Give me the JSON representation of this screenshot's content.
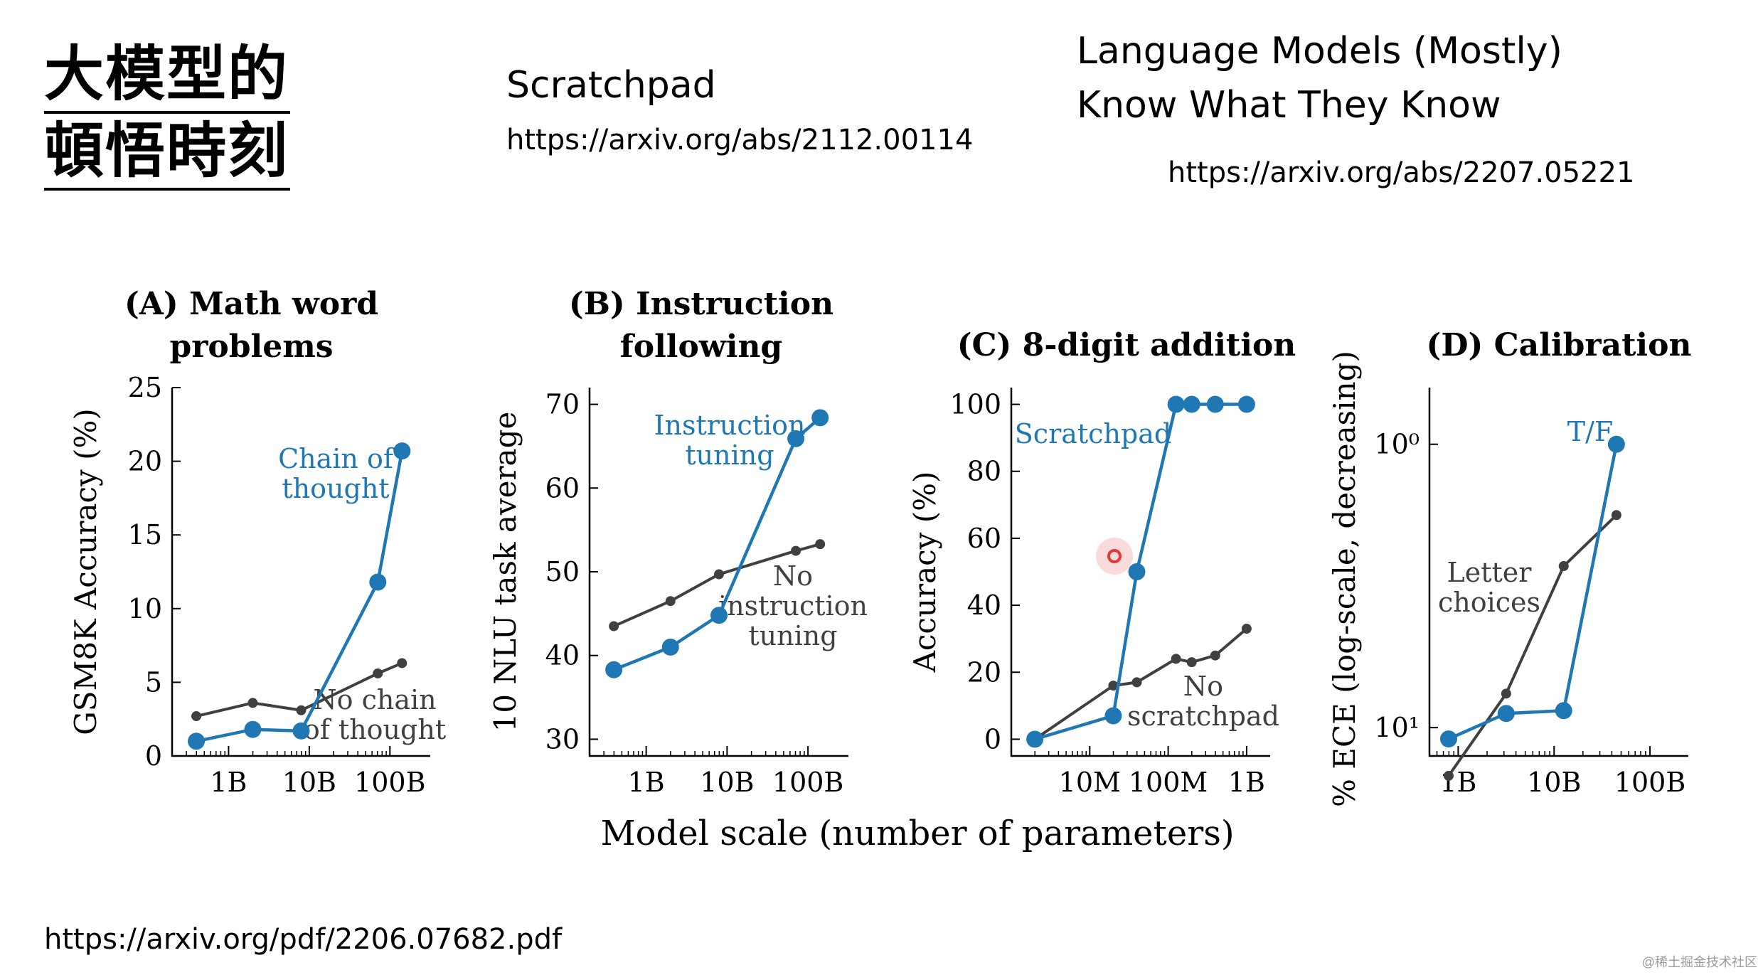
{
  "slide": {
    "title_line1": "大模型的",
    "title_line2": "頓悟時刻",
    "ref1_title": "Scratchpad",
    "ref1_url": "https://arxiv.org/abs/2112.00114",
    "ref2_title_line1": "Language Models (Mostly)",
    "ref2_title_line2": "Know What They Know",
    "ref2_url": "https://arxiv.org/abs/2207.05221",
    "source_url": "https://arxiv.org/pdf/2206.07682.pdf",
    "watermark": "@稀土掘金技术社区"
  },
  "figure": {
    "xlabel": "Model scale (number of parameters)"
  },
  "colors": {
    "blue": "#1f77b4",
    "gray": "#404040",
    "highlight": "#e53935"
  },
  "chart_data": [
    {
      "type": "line",
      "title": "(A) Math word problems",
      "title_lines": [
        "(A) Math word",
        "problems"
      ],
      "ylabel": "GSM8K Accuracy (%)",
      "yscale": "linear",
      "ylim": [
        0,
        25
      ],
      "yticks": [
        0,
        5,
        10,
        15,
        20,
        25
      ],
      "xlim_log10": [
        8.3,
        11.5
      ],
      "xticks": [
        {
          "v": 9,
          "label": "1B"
        },
        {
          "v": 10,
          "label": "10B"
        },
        {
          "v": 11,
          "label": "100B"
        }
      ],
      "series": [
        {
          "name": "Chain of thought",
          "color": "blue",
          "label_lines": [
            "Chain of",
            "thought"
          ],
          "x": [
            8.6,
            9.3,
            9.9,
            10.85,
            11.15
          ],
          "y": [
            1.0,
            1.8,
            1.7,
            11.8,
            20.7
          ]
        },
        {
          "name": "No chain of thought",
          "color": "gray",
          "label_lines": [
            "No chain",
            "of thought"
          ],
          "x": [
            8.6,
            9.3,
            9.9,
            10.85,
            11.15
          ],
          "y": [
            2.7,
            3.6,
            3.1,
            5.6,
            6.3
          ]
        }
      ]
    },
    {
      "type": "line",
      "title": "(B) Instruction following",
      "title_lines": [
        "(B) Instruction",
        "following"
      ],
      "ylabel": "10 NLU task average",
      "yscale": "linear",
      "ylim": [
        28,
        72
      ],
      "yticks": [
        30,
        40,
        50,
        60,
        70
      ],
      "xlim_log10": [
        8.3,
        11.5
      ],
      "xticks": [
        {
          "v": 9,
          "label": "1B"
        },
        {
          "v": 10,
          "label": "10B"
        },
        {
          "v": 11,
          "label": "100B"
        }
      ],
      "series": [
        {
          "name": "Instruction tuning",
          "color": "blue",
          "label_lines": [
            "Instruction",
            "tuning"
          ],
          "x": [
            8.6,
            9.3,
            9.9,
            10.85,
            11.15
          ],
          "y": [
            38.3,
            41.0,
            44.8,
            65.9,
            68.4
          ]
        },
        {
          "name": "No instruction tuning",
          "color": "gray",
          "label_lines": [
            "No",
            "instruction",
            "tuning"
          ],
          "x": [
            8.6,
            9.3,
            9.9,
            10.85,
            11.15
          ],
          "y": [
            43.5,
            46.5,
            49.7,
            52.5,
            53.3
          ]
        }
      ]
    },
    {
      "type": "line",
      "title": "(C) 8-digit addition",
      "title_lines": [
        "(C) 8-digit addition"
      ],
      "ylabel": "Accuracy (%)",
      "yscale": "linear",
      "ylim": [
        -5,
        105
      ],
      "yticks": [
        0,
        20,
        40,
        60,
        80,
        100
      ],
      "xlim_log10": [
        6.0,
        9.3
      ],
      "xticks": [
        {
          "v": 7,
          "label": "10M"
        },
        {
          "v": 8,
          "label": "100M"
        },
        {
          "v": 9,
          "label": "1B"
        }
      ],
      "series": [
        {
          "name": "Scratchpad",
          "color": "blue",
          "label_lines": [
            "Scratchpad"
          ],
          "x": [
            6.3,
            7.3,
            7.6,
            8.1,
            8.3,
            8.6,
            9.0
          ],
          "y": [
            0,
            7,
            50,
            100,
            100,
            100,
            100
          ]
        },
        {
          "name": "No scratchpad",
          "color": "gray",
          "label_lines": [
            "No",
            "scratchpad"
          ],
          "x": [
            6.3,
            7.3,
            7.6,
            8.1,
            8.3,
            8.6,
            9.0
          ],
          "y": [
            0,
            16,
            17,
            24,
            23,
            25,
            33
          ]
        }
      ]
    },
    {
      "type": "line",
      "title": "(D) Calibration",
      "title_lines": [
        "(D) Calibration"
      ],
      "ylabel": "% ECE (log-scale, decreasing)",
      "yscale": "log",
      "ylim_log10": [
        0.1,
        1.4
      ],
      "yticks": [
        {
          "v": 0.3,
          "label": "10⁰"
        },
        {
          "v": 1.3,
          "label": "10¹"
        }
      ],
      "xlim_log10": [
        8.7,
        11.4
      ],
      "xticks": [
        {
          "v": 9,
          "label": "1B"
        },
        {
          "v": 10,
          "label": "10B"
        },
        {
          "v": 11,
          "label": "100B"
        }
      ],
      "series": [
        {
          "name": "T/F",
          "color": "blue",
          "label_lines": [
            "T/F"
          ],
          "x": [
            8.9,
            9.5,
            10.1,
            10.65
          ],
          "y": [
            1.34,
            1.25,
            1.24,
            0.3
          ]
        },
        {
          "name": "Letter choices",
          "color": "gray",
          "label_lines": [
            "Letter",
            "choices"
          ],
          "x": [
            8.9,
            9.5,
            10.1,
            10.65
          ],
          "y": [
            1.47,
            1.18,
            0.73,
            0.55
          ]
        }
      ]
    }
  ]
}
